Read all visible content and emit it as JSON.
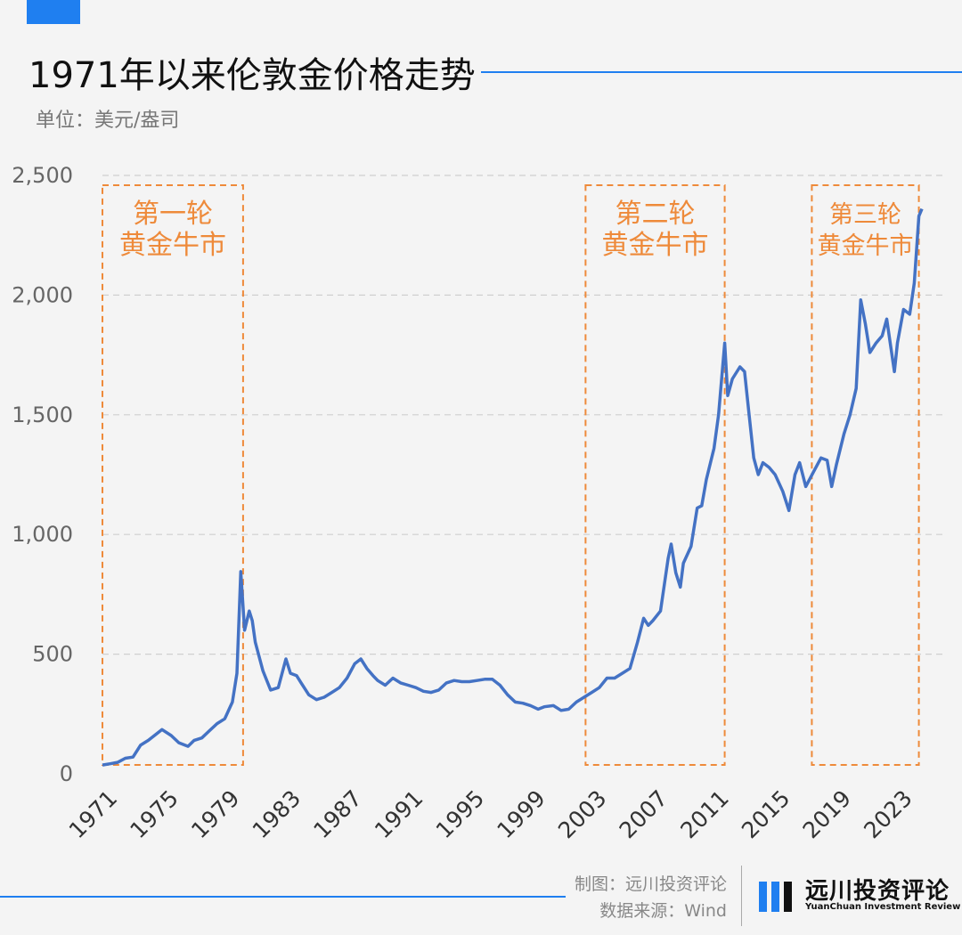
{
  "header": {
    "title": "1971年以来伦敦金价格走势",
    "unit": "单位：美元/盎司"
  },
  "footer": {
    "credit_chart": "制图：远川投资评论",
    "credit_source": "数据来源：Wind",
    "logo_cn": "远川投资评论",
    "logo_en": "YuanChuan Investment Review"
  },
  "colors": {
    "accent": "#1f7ff0",
    "line": "#4472c4",
    "highlight": "#ee8a3a"
  },
  "chart_data": {
    "type": "line",
    "title": "1971年以来伦敦金价格走势",
    "ylabel": "单位：美元/盎司",
    "xlabel": "",
    "ylim": [
      0,
      2500
    ],
    "xlim": [
      1971,
      2024.6
    ],
    "yticks": [
      0,
      500,
      1000,
      1500,
      2000,
      2500
    ],
    "ytick_labels": [
      "0",
      "500",
      "1,000",
      "1,500",
      "2,000",
      "2,500"
    ],
    "xticks": [
      1971,
      1975,
      1979,
      1983,
      1987,
      1991,
      1995,
      1999,
      2003,
      2007,
      2011,
      2015,
      2019,
      2023
    ],
    "grid": "horizontal dashed",
    "series": [
      {
        "x": [
          1971.0,
          1971.5,
          1972.0,
          1972.5,
          1973.0,
          1973.5,
          1974.0,
          1974.5,
          1974.9,
          1975.5,
          1976.0,
          1976.6,
          1977.0,
          1977.5,
          1978.0,
          1978.5,
          1979.0,
          1979.5,
          1979.8,
          1980.05,
          1980.3,
          1980.6,
          1980.8,
          1981.0,
          1981.5,
          1982.0,
          1982.5,
          1983.0,
          1983.3,
          1983.7,
          1984.0,
          1984.5,
          1985.0,
          1985.5,
          1986.0,
          1986.5,
          1987.0,
          1987.5,
          1987.9,
          1988.3,
          1988.7,
          1989.0,
          1989.5,
          1990.0,
          1990.5,
          1991.0,
          1991.5,
          1992.0,
          1992.5,
          1993.0,
          1993.5,
          1994.0,
          1994.5,
          1995.0,
          1995.5,
          1996.0,
          1996.5,
          1997.0,
          1997.5,
          1998.0,
          1998.5,
          1999.0,
          1999.5,
          1999.9,
          2000.5,
          2001.0,
          2001.5,
          2002.0,
          2002.5,
          2003.0,
          2003.5,
          2004.0,
          2004.5,
          2005.0,
          2005.5,
          2006.0,
          2006.4,
          2006.7,
          2007.0,
          2007.5,
          2008.0,
          2008.2,
          2008.5,
          2008.8,
          2009.0,
          2009.5,
          2009.9,
          2010.2,
          2010.5,
          2011.0,
          2011.3,
          2011.7,
          2011.9,
          2012.2,
          2012.7,
          2013.0,
          2013.3,
          2013.6,
          2013.9,
          2014.2,
          2014.6,
          2015.0,
          2015.5,
          2015.9,
          2016.3,
          2016.6,
          2017.0,
          2017.5,
          2018.0,
          2018.4,
          2018.7,
          2019.0,
          2019.5,
          2019.9,
          2020.3,
          2020.6,
          2020.9,
          2021.2,
          2021.6,
          2022.0,
          2022.3,
          2022.8,
          2023.0,
          2023.4,
          2023.8,
          2024.1,
          2024.4,
          2024.6
        ],
        "y": [
          37,
          42,
          48,
          65,
          70,
          120,
          140,
          165,
          185,
          160,
          130,
          115,
          140,
          150,
          180,
          210,
          230,
          300,
          420,
          845,
          600,
          680,
          640,
          550,
          430,
          350,
          360,
          480,
          420,
          410,
          380,
          330,
          310,
          320,
          340,
          360,
          400,
          460,
          480,
          440,
          410,
          390,
          370,
          400,
          380,
          370,
          360,
          345,
          340,
          350,
          380,
          390,
          385,
          385,
          390,
          395,
          395,
          370,
          330,
          300,
          295,
          285,
          270,
          280,
          285,
          265,
          270,
          300,
          320,
          340,
          360,
          400,
          400,
          420,
          440,
          550,
          650,
          620,
          640,
          680,
          900,
          960,
          840,
          780,
          880,
          950,
          1110,
          1120,
          1230,
          1360,
          1500,
          1800,
          1580,
          1650,
          1700,
          1680,
          1500,
          1320,
          1250,
          1300,
          1280,
          1250,
          1180,
          1100,
          1250,
          1300,
          1200,
          1260,
          1320,
          1310,
          1200,
          1290,
          1420,
          1500,
          1610,
          1980,
          1880,
          1760,
          1800,
          1830,
          1900,
          1680,
          1800,
          1940,
          1920,
          2050,
          2330,
          2360
        ]
      }
    ],
    "annotations": [
      {
        "label_line1": "第一轮",
        "label_line2": "黄金牛市",
        "x_start": 1971.0,
        "x_end": 1980.2
      },
      {
        "label_line1": "第二轮",
        "label_line2": "黄金牛市",
        "x_start": 2002.6,
        "x_end": 2011.7
      },
      {
        "label_line1": "第三轮",
        "label_line2": "黄金牛市",
        "x_start": 2017.4,
        "x_end": 2024.4
      }
    ]
  }
}
